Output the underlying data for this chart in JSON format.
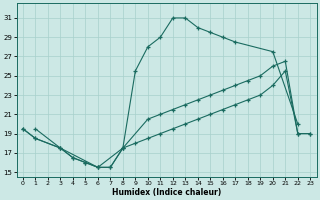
{
  "xlabel": "Humidex (Indice chaleur)",
  "bg_color": "#cce8e5",
  "grid_color": "#a8d0cc",
  "line_color": "#1a6b60",
  "xlim": [
    -0.5,
    23.5
  ],
  "ylim": [
    14.5,
    32.5
  ],
  "xticks": [
    0,
    1,
    2,
    3,
    4,
    5,
    6,
    7,
    8,
    9,
    10,
    11,
    12,
    13,
    14,
    15,
    16,
    17,
    18,
    19,
    20,
    21,
    22,
    23
  ],
  "yticks": [
    15,
    17,
    19,
    21,
    23,
    25,
    27,
    29,
    31
  ],
  "line1_x": [
    1,
    3,
    4,
    5,
    6,
    7,
    8,
    9,
    10,
    11,
    12,
    13,
    14,
    15,
    16,
    17,
    20,
    22
  ],
  "line1_y": [
    19.5,
    17.5,
    16.5,
    16.0,
    15.5,
    15.5,
    17.5,
    25.5,
    28.0,
    29.0,
    31.0,
    31.0,
    30.0,
    29.5,
    29.0,
    28.5,
    27.5,
    20.0
  ],
  "line2_x": [
    0,
    1,
    3,
    4,
    5,
    6,
    7,
    8,
    10,
    11,
    12,
    13,
    14,
    15,
    16,
    17,
    18,
    19,
    20,
    21,
    22,
    23
  ],
  "line2_y": [
    19.5,
    18.5,
    17.5,
    16.5,
    16.0,
    15.5,
    15.5,
    17.5,
    20.5,
    21.0,
    21.5,
    22.0,
    22.5,
    23.0,
    23.5,
    24.0,
    24.5,
    25.0,
    26.0,
    26.5,
    19.0,
    19.0
  ],
  "line3_x": [
    0,
    1,
    3,
    6,
    8,
    9,
    10,
    11,
    12,
    13,
    14,
    15,
    16,
    17,
    18,
    19,
    20,
    21,
    22,
    23
  ],
  "line3_y": [
    19.5,
    18.5,
    17.5,
    15.5,
    17.5,
    18.0,
    18.5,
    19.0,
    19.5,
    20.0,
    20.5,
    21.0,
    21.5,
    22.0,
    22.5,
    23.0,
    24.0,
    25.5,
    19.0,
    19.0
  ]
}
